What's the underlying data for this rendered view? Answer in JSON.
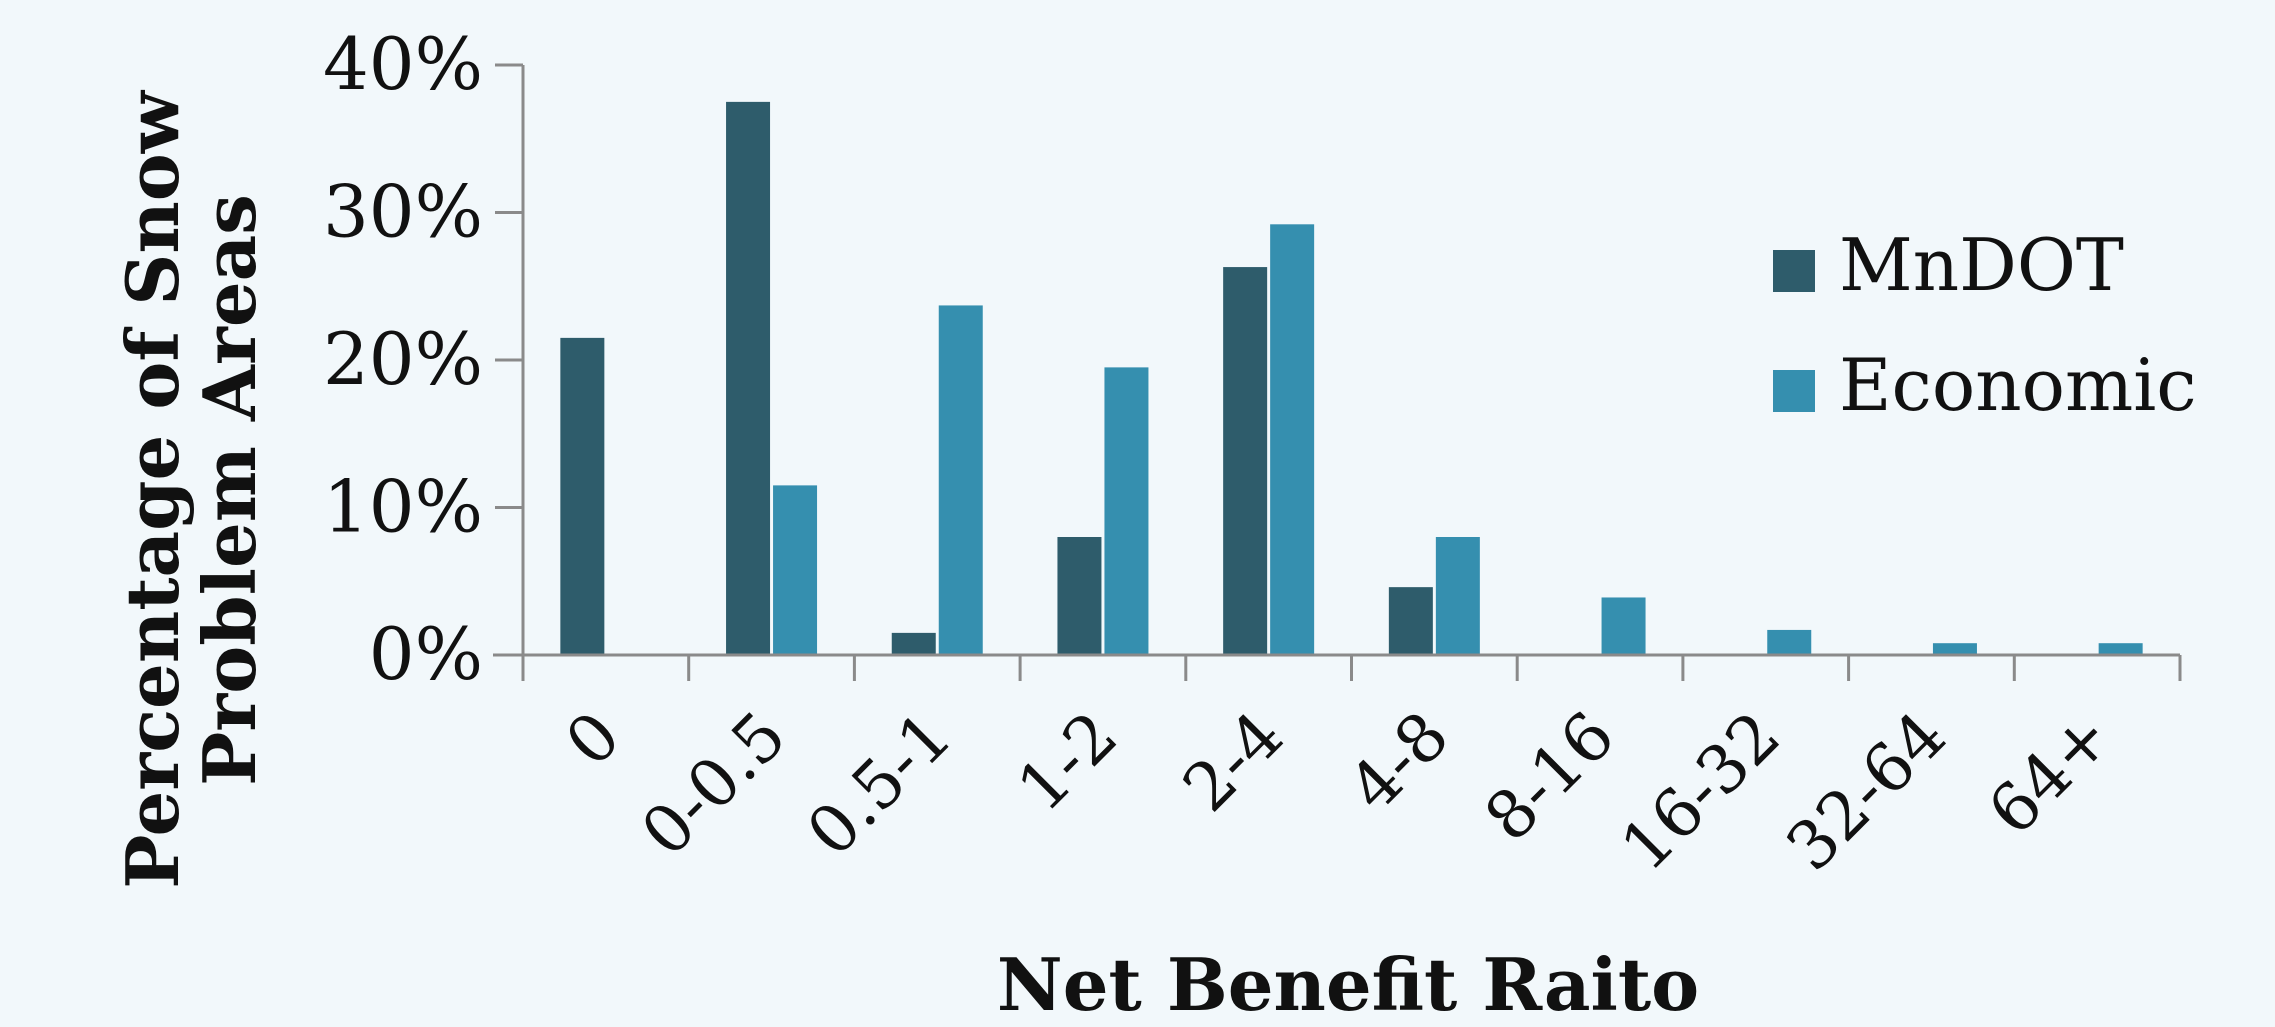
{
  "chart_data": {
    "type": "bar",
    "title": "",
    "xlabel": "Net Benefit Raito",
    "ylabel": [
      "Percentage of Snow",
      "Problem Areas"
    ],
    "categories": [
      "0",
      "0-0.5",
      "0.5-1",
      "1-2",
      "2-4",
      "4-8",
      "8-16",
      "16-32",
      "32-64",
      "64+"
    ],
    "series": [
      {
        "name": "MnDOT",
        "color": "#2e5c6b",
        "values": [
          21.5,
          37.5,
          1.5,
          8.0,
          26.3,
          4.6,
          0,
          0,
          0,
          0
        ]
      },
      {
        "name": "Economic",
        "color": "#358faf",
        "values": [
          0,
          11.5,
          23.7,
          19.5,
          29.2,
          8.0,
          3.9,
          1.7,
          0.8,
          0.8
        ]
      }
    ],
    "yticks": [
      "0%",
      "10%",
      "20%",
      "30%",
      "40%"
    ],
    "ytick_values": [
      0,
      10,
      20,
      30,
      40
    ],
    "ylim": [
      0,
      40
    ],
    "grid": false,
    "legend_position": "right"
  }
}
